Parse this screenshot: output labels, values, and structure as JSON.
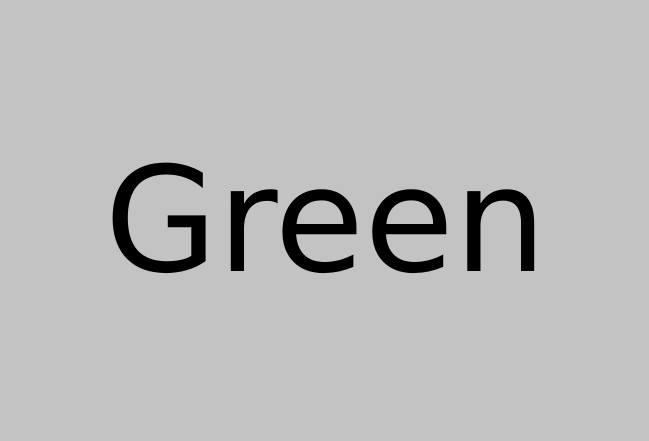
{
  "word": "Green",
  "colors": {
    "background": "#c3c3c3",
    "text": "#000000"
  }
}
